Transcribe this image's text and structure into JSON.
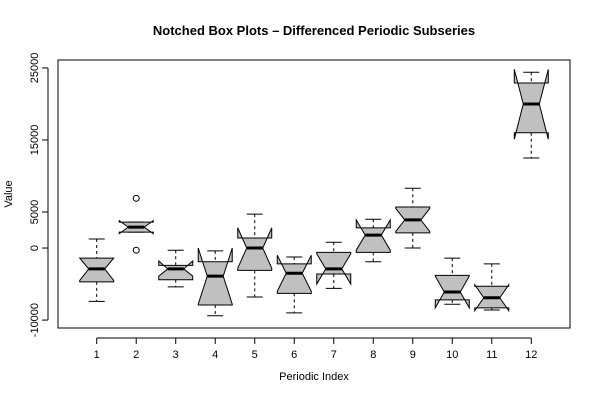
{
  "chart_data": {
    "type": "boxplot",
    "title": "Notched Box Plots – Differenced Periodic Subseries",
    "x_label": "Periodic Index",
    "y_label": "Value",
    "categories": [
      "1",
      "2",
      "3",
      "4",
      "5",
      "6",
      "7",
      "8",
      "9",
      "10",
      "11",
      "12"
    ],
    "boxes": [
      {
        "min": -7400,
        "q1": -4700,
        "median": -2900,
        "q3": -1400,
        "max": 1250,
        "notch": [
          -4500,
          -1400
        ],
        "outliers": []
      },
      {
        "min": 2200,
        "q1": 2200,
        "median": 2900,
        "q3": 3600,
        "max": 3600,
        "notch": [
          2000,
          3800
        ],
        "outliers": [
          6900,
          -300
        ]
      },
      {
        "min": -5400,
        "q1": -4400,
        "median": -2900,
        "q3": -2400,
        "max": -300,
        "notch": [
          -3900,
          -1800
        ],
        "outliers": []
      },
      {
        "min": -9400,
        "q1": -7900,
        "median": -3900,
        "q3": -1900,
        "max": -400,
        "notch": [
          -7800,
          0
        ],
        "outliers": []
      },
      {
        "min": -6800,
        "q1": -3100,
        "median": 0,
        "q3": 1400,
        "max": 4700,
        "notch": [
          -2800,
          2800
        ],
        "outliers": []
      },
      {
        "min": -9000,
        "q1": -6300,
        "median": -3500,
        "q3": -2200,
        "max": -1250,
        "notch": [
          -6000,
          -1000
        ],
        "outliers": []
      },
      {
        "min": -5600,
        "q1": -3600,
        "median": -2900,
        "q3": -600,
        "max": 800,
        "notch": [
          -5000,
          -800
        ],
        "outliers": []
      },
      {
        "min": -1900,
        "q1": -600,
        "median": 1800,
        "q3": 2800,
        "max": 4000,
        "notch": [
          -300,
          3900
        ],
        "outliers": []
      },
      {
        "min": 0,
        "q1": 2100,
        "median": 3900,
        "q3": 5700,
        "max": 8300,
        "notch": [
          2300,
          5500
        ],
        "outliers": []
      },
      {
        "min": -7800,
        "q1": -7200,
        "median": -6100,
        "q3": -3800,
        "max": -1400,
        "notch": [
          -8300,
          -3900
        ],
        "outliers": []
      },
      {
        "min": -8600,
        "q1": -8300,
        "median": -6900,
        "q3": -5300,
        "max": -2200,
        "notch": [
          -8700,
          -5100
        ],
        "outliers": []
      },
      {
        "min": 12500,
        "q1": 16000,
        "median": 20000,
        "q3": 22900,
        "max": 24400,
        "notch": [
          15100,
          24800
        ],
        "outliers": []
      }
    ],
    "color": "#c0c0c0",
    "xlim": [
      0.02,
      12.98
    ],
    "ylim": [
      -11100,
      26100
    ],
    "yticks": [
      -10000,
      0,
      5000,
      15000,
      25000
    ]
  }
}
